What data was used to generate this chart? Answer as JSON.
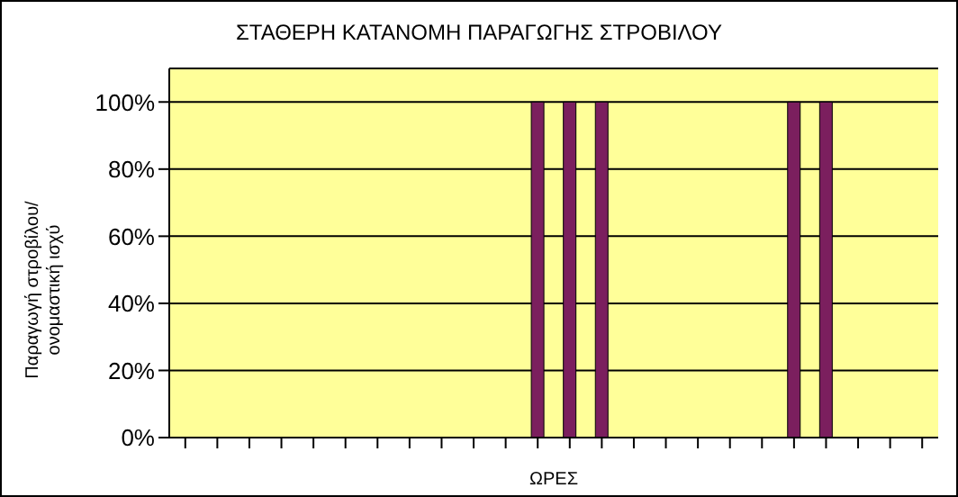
{
  "chart_data": {
    "type": "bar",
    "title": "ΣΤΑΘΕΡΗ ΚΑΤΑΝΟΜΗ ΠΑΡΑΓΩΓΗΣ ΣΤΡΟΒΙΛΟΥ",
    "xlabel": "ΩΡΕΣ",
    "ylabel": "Παραγωγή στροβίλου/ ονομαστική ισχύ",
    "categories": [
      null,
      null,
      null,
      null,
      null,
      null,
      null,
      null,
      null,
      null,
      null,
      null,
      null,
      null,
      null,
      null,
      null,
      null,
      null,
      null,
      null,
      null,
      null,
      null
    ],
    "values": [
      0,
      0,
      0,
      0,
      0,
      0,
      0,
      0,
      0,
      0,
      0,
      100,
      100,
      100,
      0,
      0,
      0,
      0,
      0,
      100,
      100,
      0,
      0,
      0
    ],
    "color": "#7b1f5e",
    "ylim": [
      0,
      110
    ],
    "yticks": [
      {
        "value": 0,
        "label": "0%"
      },
      {
        "value": 20,
        "label": "20%"
      },
      {
        "value": 40,
        "label": "40%"
      },
      {
        "value": 60,
        "label": "60%"
      },
      {
        "value": 80,
        "label": "80%"
      },
      {
        "value": 100,
        "label": "100%"
      }
    ],
    "grid": "y",
    "legend": false
  }
}
